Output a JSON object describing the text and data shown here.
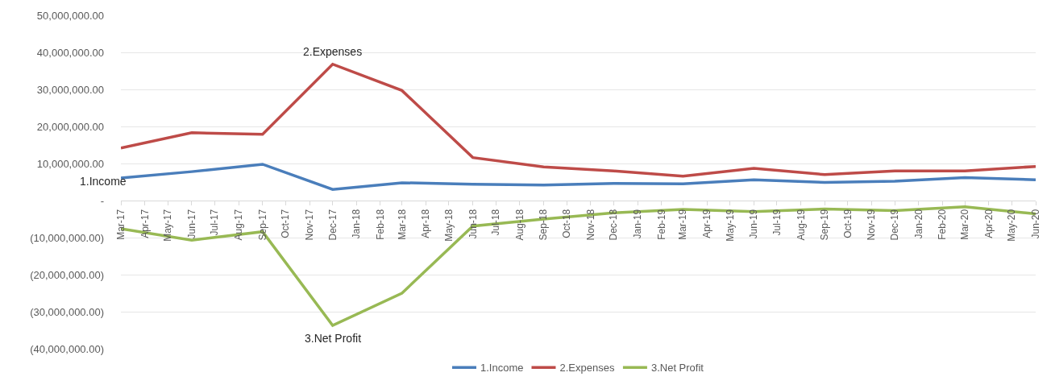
{
  "chart_data": {
    "type": "line",
    "x": [
      "2017-03",
      "2017-06",
      "2017-09",
      "2017-12",
      "2018-03",
      "2018-06",
      "2018-09",
      "2018-12",
      "2019-03",
      "2019-06",
      "2019-09",
      "2019-12",
      "2020-03",
      "2020-06"
    ],
    "series": [
      {
        "name": "1.Income",
        "color": "#4a7ebb",
        "values": [
          6100000,
          7800000,
          9800000,
          3000000,
          4800000,
          4400000,
          4200000,
          4600000,
          4500000,
          5600000,
          4900000,
          5200000,
          6200000,
          5600000
        ]
      },
      {
        "name": "2.Expenses",
        "color": "#be4b48",
        "values": [
          14200000,
          18300000,
          17900000,
          36800000,
          29700000,
          11600000,
          9100000,
          8000000,
          6600000,
          8700000,
          7000000,
          8000000,
          8000000,
          9200000
        ]
      },
      {
        "name": "3.Net Profit",
        "color": "#98b954",
        "values": [
          -7600000,
          -10700000,
          -8400000,
          -33700000,
          -25000000,
          -6900000,
          -5000000,
          -3300000,
          -2400000,
          -3000000,
          -2300000,
          -2700000,
          -1700000,
          -3600000
        ]
      }
    ],
    "annotations": [
      {
        "text": "1.Income",
        "x": "2017-03",
        "y": 6100000
      },
      {
        "text": "2.Expenses",
        "x": "2017-12",
        "y": 36800000
      },
      {
        "text": "3.Net Profit",
        "x": "2017-12",
        "y": -33700000
      }
    ],
    "xlim": [
      "2017-03",
      "2020-06"
    ],
    "xticks": [
      {
        "value": "2017-03",
        "label": "Mar-17"
      },
      {
        "value": "2017-04",
        "label": "Apr-17"
      },
      {
        "value": "2017-05",
        "label": "May-17"
      },
      {
        "value": "2017-06",
        "label": "Jun-17"
      },
      {
        "value": "2017-07",
        "label": "Jul-17"
      },
      {
        "value": "2017-08",
        "label": "Aug-17"
      },
      {
        "value": "2017-09",
        "label": "Sep-17"
      },
      {
        "value": "2017-10",
        "label": "Oct-17"
      },
      {
        "value": "2017-11",
        "label": "Nov-17"
      },
      {
        "value": "2017-12",
        "label": "Dec-17"
      },
      {
        "value": "2018-01",
        "label": "Jan-18"
      },
      {
        "value": "2018-02",
        "label": "Feb-18"
      },
      {
        "value": "2018-03",
        "label": "Mar-18"
      },
      {
        "value": "2018-04",
        "label": "Apr-18"
      },
      {
        "value": "2018-05",
        "label": "May-18"
      },
      {
        "value": "2018-06",
        "label": "Jun-18"
      },
      {
        "value": "2018-07",
        "label": "Jul-18"
      },
      {
        "value": "2018-08",
        "label": "Aug-18"
      },
      {
        "value": "2018-09",
        "label": "Sep-18"
      },
      {
        "value": "2018-10",
        "label": "Oct-18"
      },
      {
        "value": "2018-11",
        "label": "Nov-18"
      },
      {
        "value": "2018-12",
        "label": "Dec-18"
      },
      {
        "value": "2019-01",
        "label": "Jan-19"
      },
      {
        "value": "2019-02",
        "label": "Feb-19"
      },
      {
        "value": "2019-03",
        "label": "Mar-19"
      },
      {
        "value": "2019-04",
        "label": "Apr-19"
      },
      {
        "value": "2019-05",
        "label": "May-19"
      },
      {
        "value": "2019-06",
        "label": "Jun-19"
      },
      {
        "value": "2019-07",
        "label": "Jul-19"
      },
      {
        "value": "2019-08",
        "label": "Aug-19"
      },
      {
        "value": "2019-09",
        "label": "Sep-19"
      },
      {
        "value": "2019-10",
        "label": "Oct-19"
      },
      {
        "value": "2019-11",
        "label": "Nov-19"
      },
      {
        "value": "2019-12",
        "label": "Dec-19"
      },
      {
        "value": "2020-01",
        "label": "Jan-20"
      },
      {
        "value": "2020-02",
        "label": "Feb-20"
      },
      {
        "value": "2020-03",
        "label": "Mar-20"
      },
      {
        "value": "2020-04",
        "label": "Apr-20"
      },
      {
        "value": "2020-05",
        "label": "May-20"
      },
      {
        "value": "2020-06",
        "label": "Jun-20"
      }
    ],
    "ylim": [
      -40000000,
      50000000
    ],
    "yticks": [
      {
        "value": -40000000,
        "label": "(40,000,000.00)"
      },
      {
        "value": -30000000,
        "label": "(30,000,000.00)"
      },
      {
        "value": -20000000,
        "label": "(20,000,000.00)"
      },
      {
        "value": -10000000,
        "label": "(10,000,000.00)"
      },
      {
        "value": 0,
        "label": "-"
      },
      {
        "value": 10000000,
        "label": "10,000,000.00"
      },
      {
        "value": 20000000,
        "label": "20,000,000.00"
      },
      {
        "value": 30000000,
        "label": "30,000,000.00"
      },
      {
        "value": 40000000,
        "label": "40,000,000.00"
      },
      {
        "value": 50000000,
        "label": "50,000,000.00"
      }
    ],
    "grid": "y",
    "legend": "bottom",
    "marker": "none",
    "line_style": "solid"
  }
}
